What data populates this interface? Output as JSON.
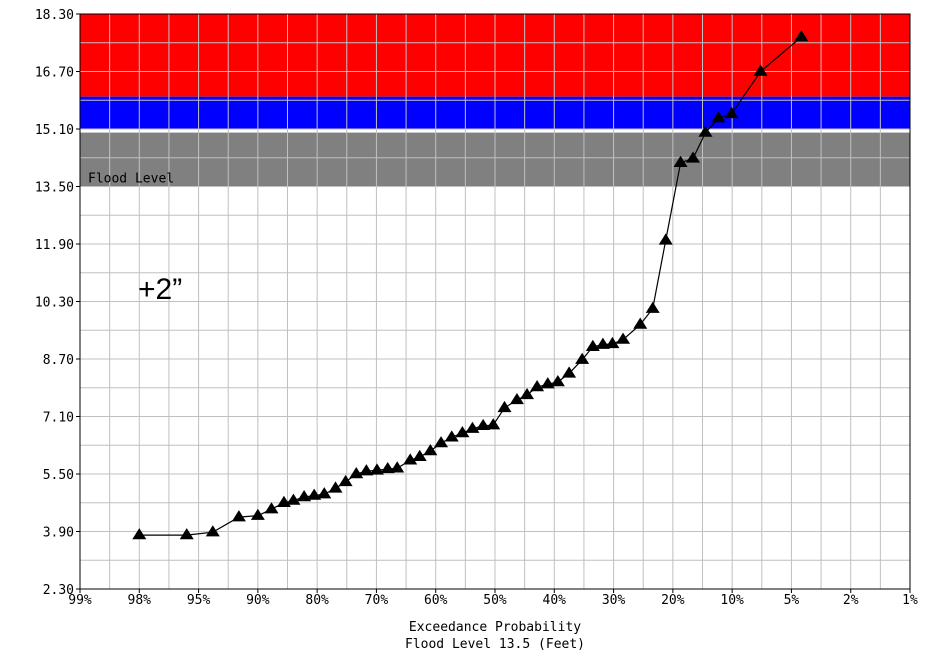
{
  "chart_data": {
    "type": "scatter",
    "xlabel": "Exceedance Probability",
    "subtitle": "Flood Level 13.5 (Feet)",
    "annotation": "+2”",
    "grid": true,
    "yscale": "linear",
    "xscale": "probability",
    "ylim": [
      2.3,
      18.3
    ],
    "xlim": [
      99,
      1
    ],
    "y_ticks": [
      "18.30",
      "16.70",
      "15.10",
      "13.50",
      "11.90",
      "10.30",
      "8.70",
      "7.10",
      "5.50",
      "3.90",
      "2.30"
    ],
    "x_ticks": [
      "99%",
      "98%",
      "95%",
      "90%",
      "80%",
      "70%",
      "60%",
      "50%",
      "40%",
      "30%",
      "20%",
      "10%",
      "5%",
      "2%",
      "1%"
    ],
    "x_tick_values": [
      99,
      98,
      95,
      90,
      80,
      70,
      60,
      50,
      40,
      30,
      20,
      10,
      5,
      2,
      1
    ],
    "bands": [
      {
        "name": "",
        "from": 16.0,
        "to": 18.3,
        "color": "#ff0000"
      },
      {
        "name": "",
        "from": 15.1,
        "to": 16.0,
        "color": "#0000ff"
      },
      {
        "name": "Flood Level",
        "from": 13.5,
        "to": 15.0,
        "color": "#808080"
      }
    ],
    "flood_level_label": "Flood Level",
    "series": [
      {
        "marker": "triangle",
        "color": "#000000",
        "points": [
          [
            98,
            3.8
          ],
          [
            95.6,
            3.8
          ],
          [
            93.8,
            3.88
          ],
          [
            91.6,
            4.3
          ],
          [
            90,
            4.34
          ],
          [
            87.7,
            4.52
          ],
          [
            85.6,
            4.7
          ],
          [
            84,
            4.76
          ],
          [
            82.2,
            4.86
          ],
          [
            80.5,
            4.9
          ],
          [
            78.8,
            4.94
          ],
          [
            76.9,
            5.1
          ],
          [
            75.2,
            5.28
          ],
          [
            73.4,
            5.5
          ],
          [
            71.7,
            5.58
          ],
          [
            69.9,
            5.6
          ],
          [
            68.1,
            5.64
          ],
          [
            66.5,
            5.66
          ],
          [
            64.3,
            5.88
          ],
          [
            62.7,
            5.98
          ],
          [
            60.9,
            6.14
          ],
          [
            59.1,
            6.36
          ],
          [
            57.3,
            6.52
          ],
          [
            55.5,
            6.64
          ],
          [
            53.8,
            6.76
          ],
          [
            52.0,
            6.84
          ],
          [
            50.3,
            6.86
          ],
          [
            48.4,
            7.34
          ],
          [
            46.3,
            7.56
          ],
          [
            44.6,
            7.7
          ],
          [
            42.9,
            7.92
          ],
          [
            41.1,
            8.0
          ],
          [
            39.4,
            8.06
          ],
          [
            37.5,
            8.3
          ],
          [
            35.3,
            8.68
          ],
          [
            33.5,
            9.04
          ],
          [
            31.8,
            9.1
          ],
          [
            30.2,
            9.12
          ],
          [
            28.4,
            9.24
          ],
          [
            25.5,
            9.66
          ],
          [
            23.4,
            10.1
          ],
          [
            21.2,
            12.0
          ],
          [
            18.7,
            14.16
          ],
          [
            16.6,
            14.28
          ],
          [
            14.5,
            15.0
          ],
          [
            12.3,
            15.4
          ],
          [
            10.1,
            15.52
          ],
          [
            7.6,
            16.7
          ],
          [
            4.5,
            17.66
          ]
        ]
      }
    ]
  }
}
